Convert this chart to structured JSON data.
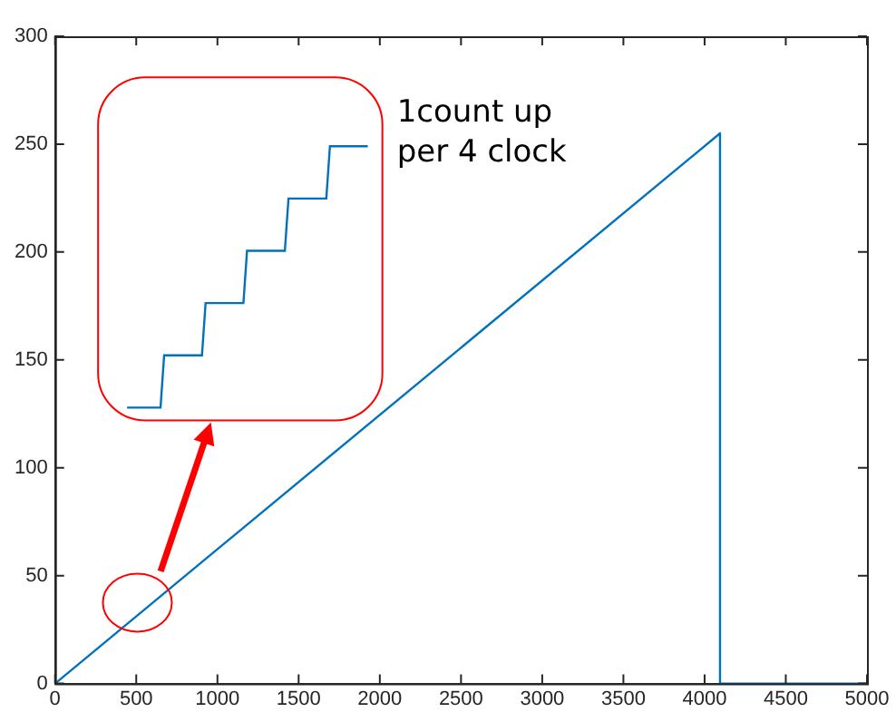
{
  "chart_data": {
    "type": "line",
    "x": [
      0,
      4095,
      4095,
      5000
    ],
    "series": [
      {
        "color": "#0072bd",
        "values": [
          0,
          255,
          0,
          0
        ]
      }
    ],
    "xlim": [
      0,
      5000
    ],
    "xticks": [
      0,
      500,
      1000,
      1500,
      2000,
      2500,
      3000,
      3500,
      4000,
      4500,
      5000
    ],
    "ylim": [
      0,
      300
    ],
    "yticks": [
      0,
      50,
      100,
      150,
      200,
      250,
      300
    ],
    "grid": false,
    "legend": false,
    "marker": "none",
    "line_style": "solid",
    "annotations": [
      "1count up per 4 clock"
    ]
  }
}
